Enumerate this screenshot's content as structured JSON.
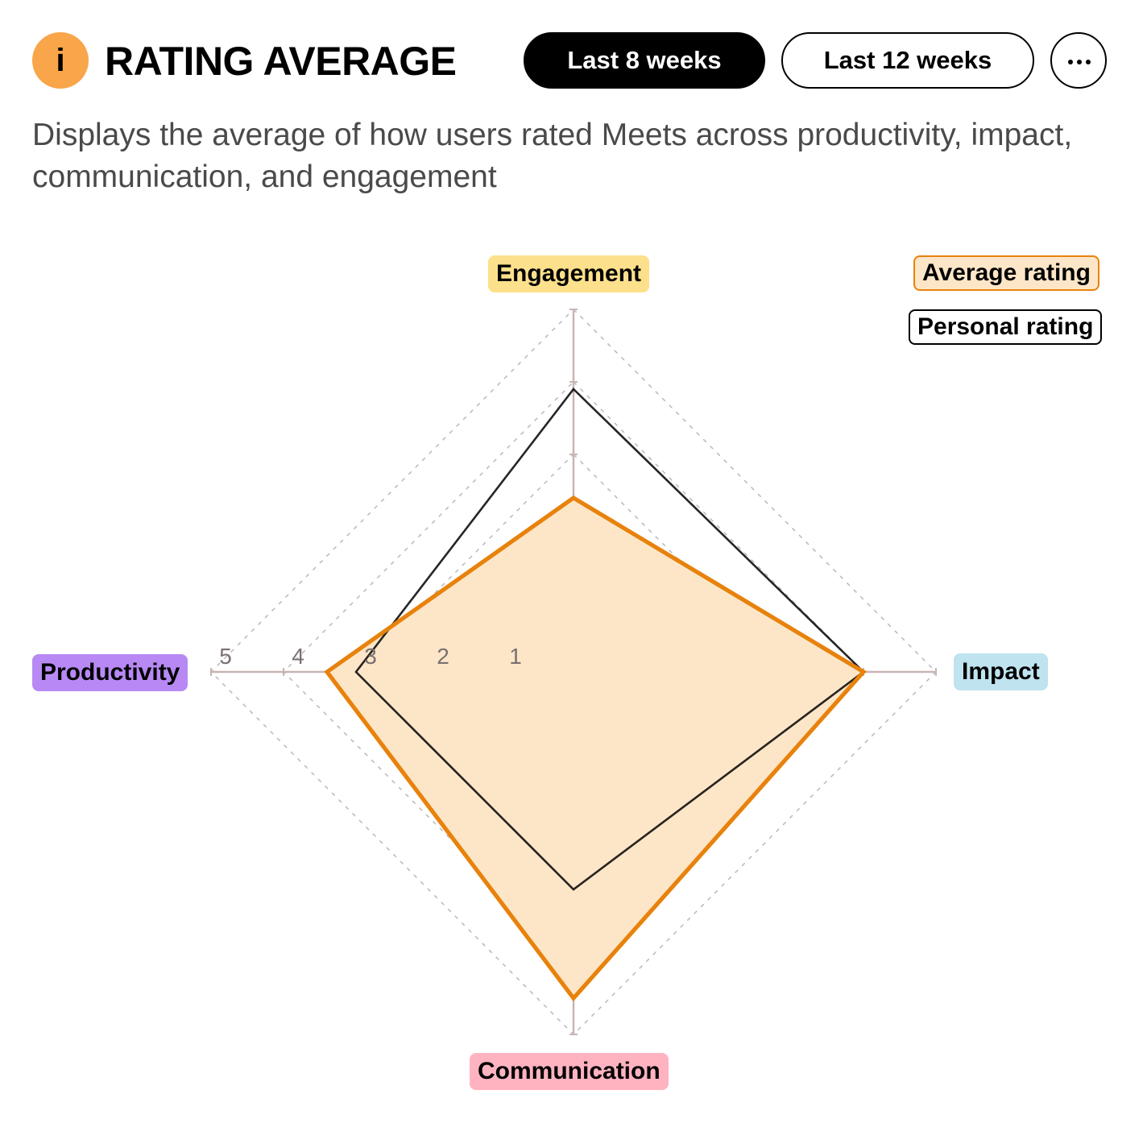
{
  "header": {
    "info_icon_glyph": "i",
    "title": "RATING AVERAGE",
    "tabs": [
      {
        "label": "Last 8 weeks",
        "active": true
      },
      {
        "label": "Last 12 weeks",
        "active": false
      }
    ],
    "more_icon": "more-horizontal-icon"
  },
  "description": "Displays the average of how users rated Meets across productivity, impact, communication, and engagement",
  "colors": {
    "accent": "#f9a54a",
    "average_stroke": "#e8820c",
    "average_fill": "#fde6c8",
    "personal_stroke": "#000000",
    "engagement": "#fde08b",
    "impact": "#bfe3ef",
    "communication": "#ffb3c1",
    "productivity": "#b889f5"
  },
  "chart_data": {
    "type": "radar",
    "axes": [
      "Engagement",
      "Impact",
      "Communication",
      "Productivity"
    ],
    "scale_ticks": [
      "1",
      "2",
      "3",
      "4",
      "5"
    ],
    "rlim": [
      0,
      5
    ],
    "series": [
      {
        "name": "Average rating",
        "values": [
          2.4,
          4.0,
          4.5,
          3.4
        ]
      },
      {
        "name": "Personal rating",
        "values": [
          3.9,
          4.0,
          3.0,
          3.0
        ]
      }
    ],
    "grid": "dashed",
    "legend_position": "top-right"
  }
}
